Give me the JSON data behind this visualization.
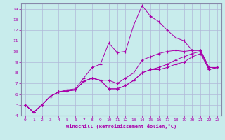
{
  "xlabel": "Windchill (Refroidissement éolien,°C)",
  "xlim": [
    -0.5,
    23.5
  ],
  "ylim": [
    4,
    14.5
  ],
  "xticks": [
    0,
    1,
    2,
    3,
    4,
    5,
    6,
    7,
    8,
    9,
    10,
    11,
    12,
    13,
    14,
    15,
    16,
    17,
    18,
    19,
    20,
    21,
    22,
    23
  ],
  "yticks": [
    4,
    5,
    6,
    7,
    8,
    9,
    10,
    11,
    12,
    13,
    14
  ],
  "background_color": "#c8ecec",
  "grid_color": "#b0b8d8",
  "line_color": "#aa00aa",
  "spine_color": "#8888aa",
  "series": [
    [
      5.0,
      4.3,
      5.0,
      5.8,
      6.2,
      6.4,
      6.5,
      7.5,
      8.5,
      8.8,
      10.8,
      9.9,
      10.0,
      12.5,
      14.3,
      13.3,
      12.8,
      12.0,
      11.3,
      11.0,
      10.1,
      10.1,
      8.5,
      8.5
    ],
    [
      5.0,
      4.3,
      5.0,
      5.8,
      6.2,
      6.3,
      6.4,
      7.2,
      7.5,
      7.3,
      7.3,
      7.0,
      7.5,
      8.0,
      9.2,
      9.5,
      9.8,
      10.0,
      10.1,
      10.0,
      10.1,
      10.1,
      8.5,
      8.5
    ],
    [
      5.0,
      4.3,
      5.0,
      5.8,
      6.2,
      6.3,
      6.4,
      7.2,
      7.5,
      7.3,
      6.5,
      6.5,
      6.8,
      7.3,
      8.0,
      8.3,
      8.5,
      8.8,
      9.2,
      9.5,
      9.8,
      10.0,
      8.3,
      8.5
    ],
    [
      5.0,
      4.3,
      5.0,
      5.8,
      6.2,
      6.3,
      6.4,
      7.2,
      7.5,
      7.3,
      6.5,
      6.5,
      6.8,
      7.3,
      8.0,
      8.3,
      8.3,
      8.5,
      8.8,
      9.0,
      9.5,
      9.8,
      8.3,
      8.5
    ]
  ]
}
